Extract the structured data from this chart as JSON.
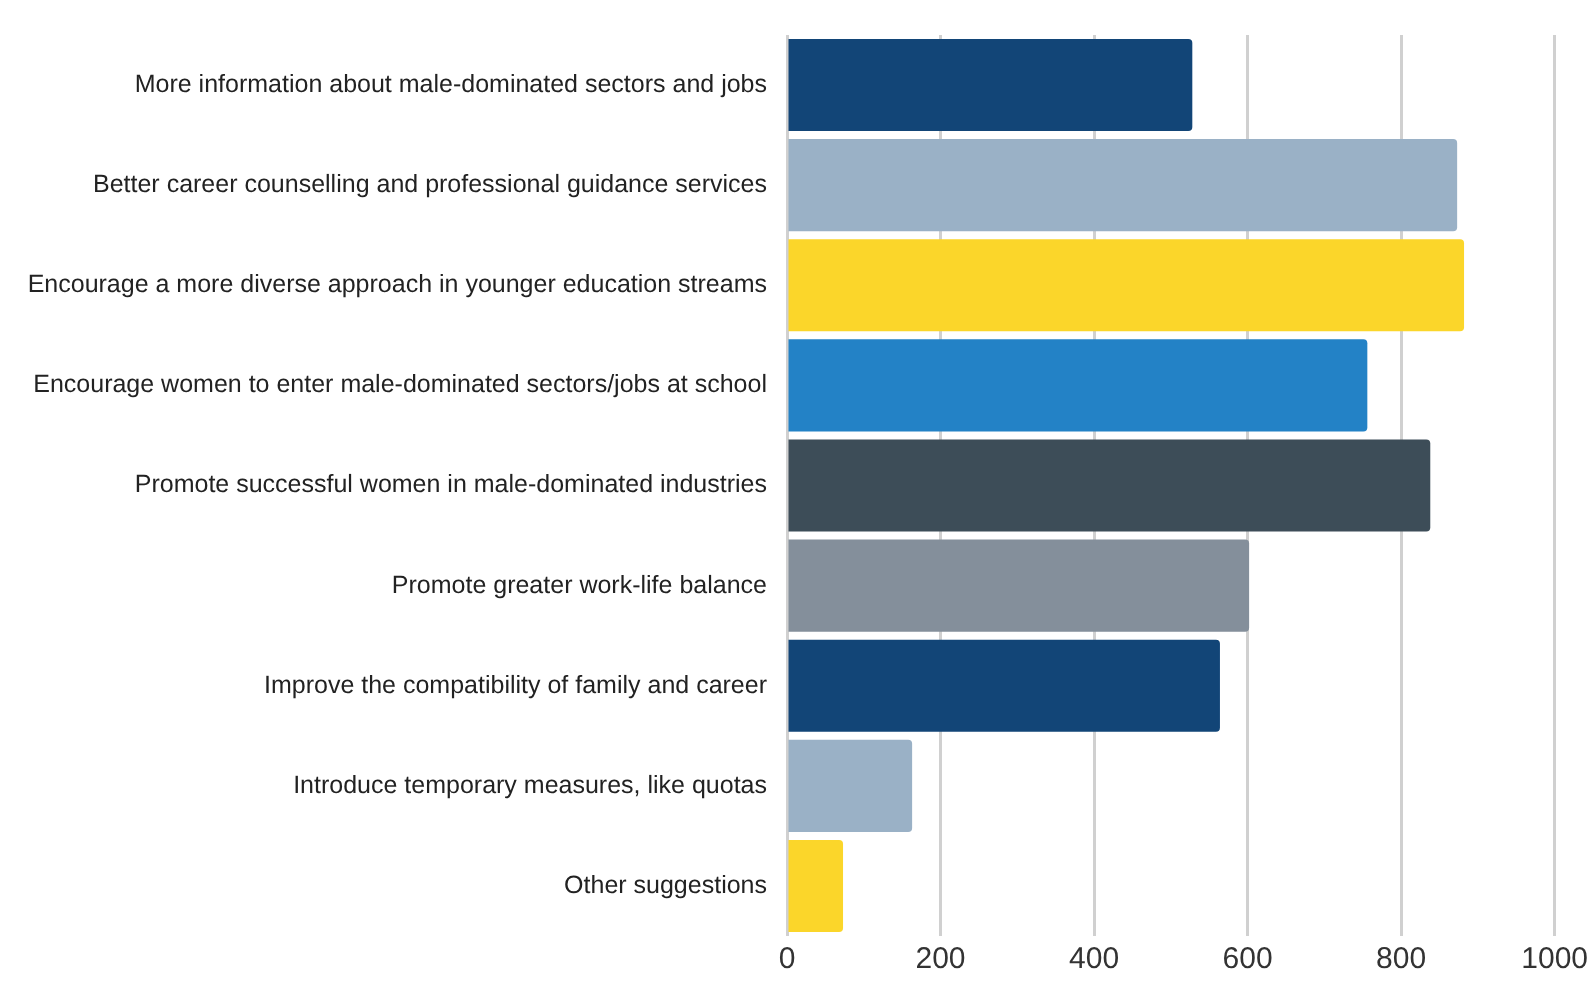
{
  "chart_data": {
    "type": "bar",
    "orientation": "horizontal",
    "categories": [
      "More information about male-dominated sectors and jobs",
      "Better career counselling and professional guidance services",
      "Encourage a more diverse approach in younger education streams",
      "Encourage women to enter male-dominated sectors/jobs at school",
      "Promote successful women in male-dominated industries",
      "Promote greater work-life balance",
      "Improve the compatibility of family and career",
      "Introduce temporary measures, like quotas",
      "Other suggestions"
    ],
    "values": [
      528,
      873,
      882,
      756,
      838,
      602,
      564,
      163,
      73
    ],
    "colors": [
      "#124577",
      "#9ab1c6",
      "#fbd62a",
      "#2382c6",
      "#3d4d58",
      "#848f9b",
      "#124577",
      "#9ab1c6",
      "#fbd62a"
    ],
    "xlim": [
      0,
      1000
    ],
    "xticks": [
      0,
      200,
      400,
      600,
      800,
      1000
    ],
    "grid": "x",
    "legend": false
  }
}
